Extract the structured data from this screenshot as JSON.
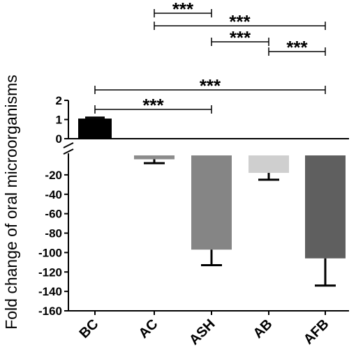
{
  "chart_data": {
    "type": "bar",
    "ylabel": "Fold change of oral microorganisms",
    "categories": [
      "BC",
      "AC",
      "ASH",
      "AB",
      "AFB"
    ],
    "values": [
      1.05,
      -4,
      -97,
      -18,
      -106
    ],
    "errors": [
      0.05,
      4,
      16,
      7,
      28
    ],
    "bar_colors": [
      "#000000",
      "#8c8c8c",
      "#858585",
      "#cfcfcf",
      "#5f5f5f"
    ],
    "broken_axis": true,
    "upper_segment": {
      "ylim": [
        0,
        2
      ],
      "ticks": [
        "2",
        "1",
        "0"
      ],
      "tick_values": [
        2,
        1,
        0
      ]
    },
    "lower_segment": {
      "ylim": [
        -160,
        0
      ],
      "ticks": [
        "-20",
        "-40",
        "-60",
        "-80",
        "-100",
        "-120",
        "-140",
        "-160"
      ],
      "tick_values": [
        -20,
        -40,
        -60,
        -80,
        -100,
        -120,
        -140,
        -160
      ]
    },
    "significance": [
      {
        "from": "AC",
        "to": "ASH",
        "label": "***"
      },
      {
        "from": "AC",
        "to": "AFB",
        "label": "***"
      },
      {
        "from": "ASH",
        "to": "AB",
        "label": "***"
      },
      {
        "from": "AB",
        "to": "AFB",
        "label": "***"
      },
      {
        "from": "BC",
        "to": "AFB",
        "label": "***"
      },
      {
        "from": "BC",
        "to": "ASH",
        "label": "***"
      }
    ]
  }
}
